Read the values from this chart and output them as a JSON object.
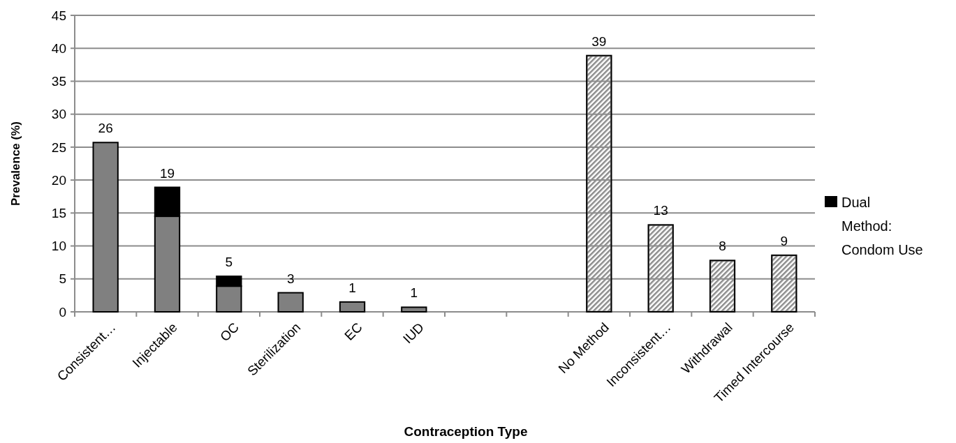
{
  "chart_data": {
    "type": "bar",
    "xlabel": "Contraception Type",
    "ylabel": "Prevalence (%)",
    "categories": [
      "Consistent…",
      "Injectable",
      "OC",
      "Sterilization",
      "EC",
      "IUD",
      null,
      null,
      "No Method",
      "Inconsistent…",
      "Withdrawal",
      "Timed Intercourse"
    ],
    "series": [
      {
        "color": "#808080",
        "values": [
          25.7,
          14.5,
          3.9,
          2.9,
          1.5,
          0.7,
          null,
          null,
          null,
          null,
          null,
          null
        ]
      },
      {
        "name": "Dual Method: Condom Use",
        "color": "#000000",
        "values": [
          null,
          4.4,
          1.5,
          null,
          null,
          null,
          null,
          null,
          null,
          null,
          null,
          null
        ]
      },
      {
        "color": "#8c8c8c",
        "values": [
          null,
          null,
          null,
          null,
          null,
          null,
          null,
          null,
          38.9,
          13.2,
          7.8,
          8.6
        ]
      }
    ],
    "stacked": true,
    "totals": [
      "26",
      "19",
      "5",
      "3",
      "1",
      "1",
      null,
      null,
      "39",
      "13",
      "8",
      "9"
    ],
    "ylim": [
      0,
      45
    ],
    "yticks": [
      0,
      5,
      10,
      15,
      20,
      25,
      30,
      35,
      40,
      45
    ],
    "grid": "y",
    "legend": "right"
  }
}
